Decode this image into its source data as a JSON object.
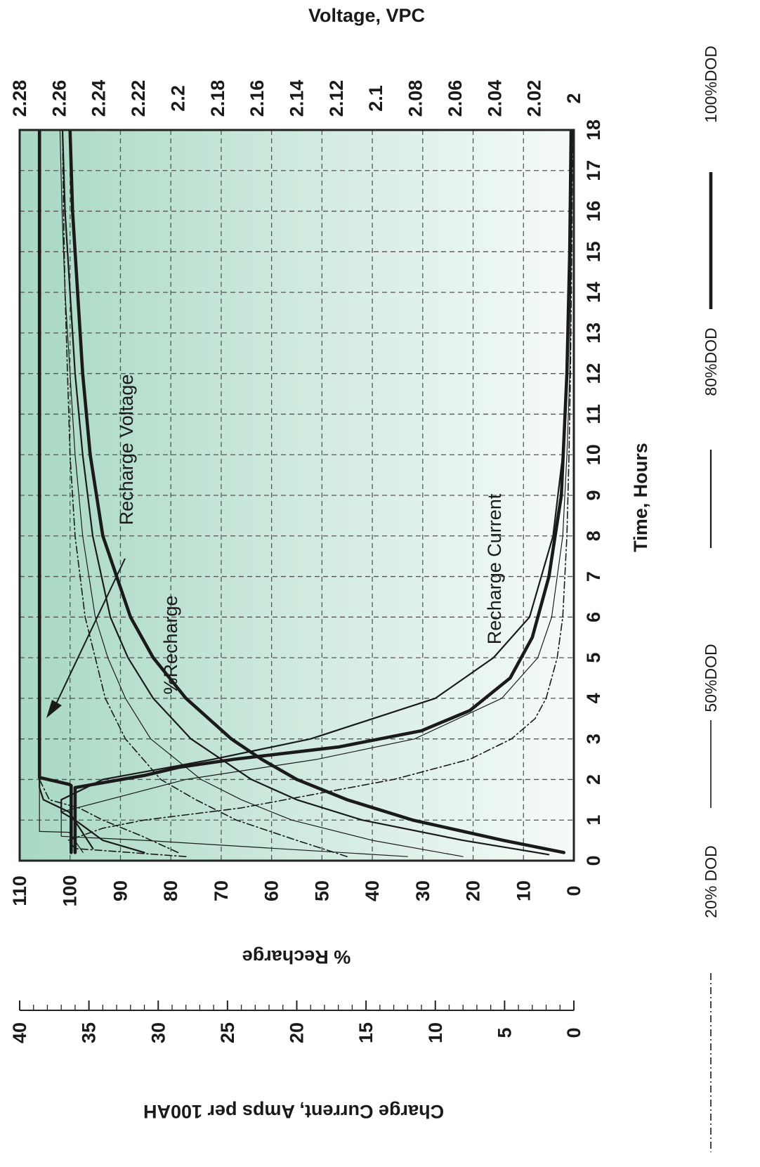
{
  "chart_data": {
    "type": "line",
    "orientation_note": "figure is rotated 90 degrees clockwise; time axis runs along the right edge",
    "title": "",
    "xlabel": "Time, Hours",
    "y_left_label": "% Recharge",
    "y_right_label": "Voltage, VPC",
    "y2_label": "Charge Current, Amps per 100AH",
    "x_ticks": [
      "0",
      "1",
      "2",
      "3",
      "4",
      "5",
      "6",
      "7",
      "8",
      "9",
      "10",
      "11",
      "12",
      "13",
      "14",
      "15",
      "16",
      "17",
      "18"
    ],
    "recharge_ticks": [
      "0",
      "10",
      "20",
      "30",
      "40",
      "50",
      "60",
      "70",
      "80",
      "90",
      "100",
      "110"
    ],
    "voltage_ticks": [
      "2",
      "2.02",
      "2.04",
      "2.06",
      "2.08",
      "2.1",
      "2.12",
      "2.14",
      "2.16",
      "2.18",
      "2.2",
      "2.22",
      "2.24",
      "2.26",
      "2.28"
    ],
    "current_ticks": [
      "0",
      "5",
      "10",
      "15",
      "20",
      "25",
      "30",
      "35",
      "40"
    ],
    "xlim": [
      0,
      18
    ],
    "recharge_lim": [
      0,
      110
    ],
    "voltage_lim": [
      2.0,
      2.28
    ],
    "current_lim": [
      0,
      40
    ],
    "grid": true,
    "background_gradient": [
      "#a8d8c4",
      "#f6fbf8"
    ],
    "legend": [
      {
        "label": "20% DOD",
        "style": "dash-dot"
      },
      {
        "label": "50%DOD",
        "style": "thin"
      },
      {
        "label": "80%DOD",
        "style": "medium"
      },
      {
        "label": "100%DOD",
        "style": "thick"
      }
    ],
    "annotations": [
      {
        "text": "Recharge Voltage"
      },
      {
        "text": "%Recharge"
      },
      {
        "text": "Recharge Current"
      }
    ],
    "series": [
      {
        "group": "voltage",
        "dod": "20% DOD",
        "unit": "VPC",
        "x": [
          0.2,
          0.6,
          1.0,
          1.3,
          1.5,
          2,
          18
        ],
        "y": [
          2.2,
          2.218,
          2.238,
          2.25,
          2.265,
          2.27,
          2.27
        ]
      },
      {
        "group": "voltage",
        "dod": "50%DOD",
        "unit": "VPC",
        "x": [
          0.2,
          0.7,
          0.72,
          1.2,
          18
        ],
        "y": [
          2.248,
          2.255,
          2.27,
          2.27,
          2.27
        ]
      },
      {
        "group": "voltage",
        "dod": "80%DOD",
        "unit": "VPC",
        "x": [
          0.3,
          1.2,
          1.5,
          1.8,
          18
        ],
        "y": [
          2.243,
          2.255,
          2.268,
          2.27,
          2.27
        ]
      },
      {
        "group": "voltage",
        "dod": "100%DOD",
        "unit": "VPC",
        "x": [
          0.2,
          1.85,
          1.88,
          2.05,
          2.1,
          18
        ],
        "y": [
          2.254,
          2.254,
          2.255,
          2.27,
          2.27,
          2.27
        ]
      },
      {
        "group": "recharge",
        "dod": "20% DOD",
        "unit": "%",
        "x": [
          0.1,
          0.5,
          1,
          1.5,
          2,
          3,
          4,
          5,
          6,
          8,
          10,
          12,
          14,
          16,
          18
        ],
        "y": [
          45,
          55,
          67,
          75,
          82,
          89,
          93,
          95,
          97,
          99,
          100,
          100.5,
          101,
          101.3,
          101.5
        ]
      },
      {
        "group": "recharge",
        "dod": "50%DOD",
        "unit": "%",
        "x": [
          0.1,
          0.5,
          1,
          1.5,
          2,
          3,
          4,
          5,
          6,
          8,
          10,
          12,
          14,
          16,
          18
        ],
        "y": [
          22,
          40,
          56,
          66,
          74,
          84,
          89,
          92.5,
          95,
          97.5,
          99,
          100,
          101,
          101.6,
          102
        ]
      },
      {
        "group": "recharge",
        "dod": "80%DOD",
        "unit": "%",
        "x": [
          0.15,
          0.5,
          1,
          1.5,
          2,
          3,
          4,
          5,
          6,
          8,
          10,
          12,
          14,
          16,
          18
        ],
        "y": [
          5,
          22,
          42,
          55,
          64,
          76,
          83.5,
          88.5,
          92,
          95.5,
          97.5,
          99,
          100,
          101,
          101.5
        ]
      },
      {
        "group": "recharge",
        "dod": "100%DOD",
        "unit": "%",
        "x": [
          0.2,
          0.5,
          1,
          1.5,
          2,
          2.5,
          3,
          4,
          5,
          6,
          8,
          10,
          12,
          14,
          16,
          18
        ],
        "y": [
          2,
          14,
          32,
          45,
          55,
          62,
          68,
          77,
          83.5,
          88,
          93.5,
          96,
          97.5,
          98.5,
          99.5,
          100
        ]
      },
      {
        "group": "current",
        "dod": "20% DOD",
        "unit": "A per 100AH",
        "x": [
          0.1,
          0.3,
          0.5,
          0.8,
          1,
          1.3,
          2,
          2.5,
          3,
          3.5,
          4,
          5,
          6,
          8,
          10,
          12,
          15,
          18
        ],
        "y": [
          28,
          36,
          36.5,
          34,
          31,
          24,
          13,
          7.5,
          4.5,
          2.8,
          2,
          1.2,
          0.8,
          0.5,
          0.35,
          0.25,
          0.15,
          0.1
        ]
      },
      {
        "group": "current",
        "dod": "50%DOD",
        "unit": "A per 100AH",
        "x": [
          0.1,
          0.5,
          0.6,
          1.2,
          2,
          2.5,
          3,
          4,
          5,
          6,
          8,
          10,
          12,
          15,
          18
        ],
        "y": [
          12,
          31,
          37,
          37,
          28,
          18.5,
          11.5,
          5.2,
          2.6,
          1.6,
          0.8,
          0.5,
          0.3,
          0.2,
          0.1
        ]
      },
      {
        "group": "current",
        "dod": "80%DOD",
        "unit": "A per 100AH",
        "x": [
          0.2,
          0.5,
          1,
          1.2,
          1.5,
          2,
          2.5,
          3,
          4,
          5,
          6,
          8,
          10,
          12,
          15,
          18
        ],
        "y": [
          31,
          34,
          36,
          37,
          37,
          34,
          26,
          19,
          10,
          5.8,
          3.2,
          1.5,
          0.8,
          0.5,
          0.3,
          0.2
        ]
      },
      {
        "group": "current",
        "dod": "100%DOD",
        "unit": "A per 100AH",
        "x": [
          0.2,
          1.8,
          2.1,
          2.3,
          2.5,
          2.8,
          3.2,
          3.7,
          4.5,
          5.5,
          7,
          9,
          12,
          15,
          18
        ],
        "y": [
          36,
          36,
          31,
          28.5,
          24.5,
          17,
          11,
          7.5,
          4.6,
          3,
          1.8,
          0.9,
          0.5,
          0.3,
          0.2
        ]
      }
    ]
  }
}
